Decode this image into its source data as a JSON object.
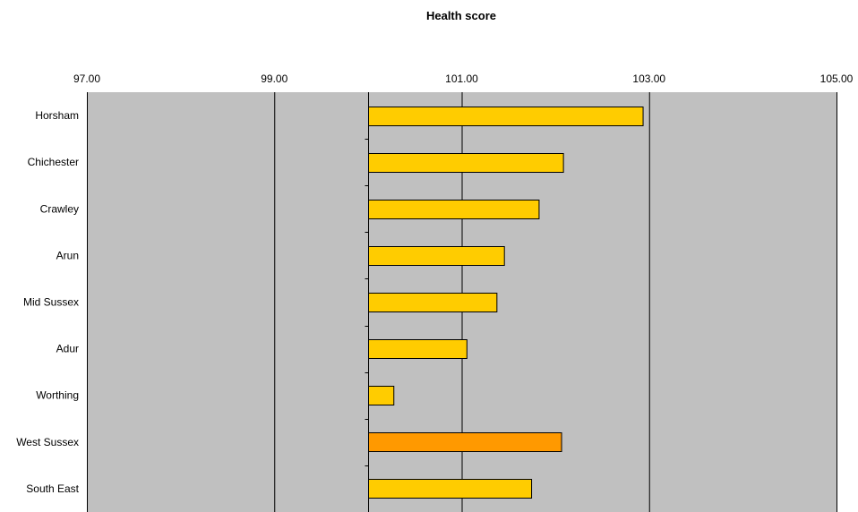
{
  "chart_data": {
    "type": "bar",
    "orientation": "horizontal",
    "title": "Health score",
    "xlabel": "",
    "ylabel": "",
    "categories": [
      "Horsham",
      "Chichester",
      "Crawley",
      "Arun",
      "Mid Sussex",
      "Adur",
      "Worthing",
      "West Sussex",
      "South East"
    ],
    "values": [
      102.93,
      102.08,
      101.82,
      101.45,
      101.37,
      101.05,
      100.27,
      102.06,
      101.74
    ],
    "baseline": 100.0,
    "xlim": [
      97.0,
      105.0
    ],
    "ticks": [
      "97.00",
      "99.00",
      "101.00",
      "103.00",
      "105.00"
    ],
    "tick_values": [
      97,
      99,
      101,
      103,
      105
    ],
    "axis_position": "top",
    "grid": true,
    "legend": "none",
    "colors": {
      "plot_background": "#c0c0c0",
      "bar": "#ffcc00",
      "highlight_bar": "#ff9900",
      "bar_edge": "#000000",
      "gridline": "#000000"
    },
    "highlight_category": "West Sussex"
  }
}
